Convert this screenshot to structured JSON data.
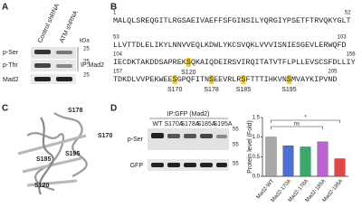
{
  "panel_a": {
    "label": "A",
    "lanes": [
      "Control shRNA",
      "ATM shRNA"
    ],
    "unit": "kDa",
    "markers": [
      25,
      25,
      25
    ],
    "rows": [
      "p-Ser",
      "p-Thr",
      "Mad2"
    ],
    "ip": "IP:Mad2"
  },
  "panel_b": {
    "label": "B",
    "lines": [
      {
        "start": 1,
        "end": 52,
        "seq": "MALQLSREQGITLRGSAEIVAEFFSFGINSILYQRGIYPSETFTRVQKYGLT"
      },
      {
        "start": 53,
        "end": 103,
        "seq": "LLVTTDLELIKYLNNVVEQLKDWLYKCSVQKLVVVISNIESGEVLERWQFD"
      },
      {
        "start": 104,
        "end": 156,
        "seq": "IECDKTAKDDSAPREKSQKAIQDEIRSVIRQITATVTFLPLLEVSCSFDLLIY"
      },
      {
        "start": 157,
        "end": 205,
        "seq": "TDKDLVVPEKWEESGPQFITNSEEVRLRSFTTTIHKVNSMVAYKIPVND"
      }
    ],
    "sites": [
      {
        "label": "S120",
        "color": "#4aa3df"
      },
      {
        "label": "S170",
        "color": "#1f4fbf"
      },
      {
        "label": "S178",
        "color": "#1a9a5a"
      },
      {
        "label": "S185",
        "color": "#a040c0"
      },
      {
        "label": "S195",
        "color": "#d02828"
      }
    ]
  },
  "panel_c": {
    "label": "C",
    "sites": [
      "S178",
      "S170",
      "S195",
      "S185",
      "S120"
    ]
  },
  "panel_d": {
    "label": "D",
    "ip": "IP:GFP (Mad2)",
    "lanes": [
      "WT",
      "S170A",
      "S178A",
      "S185A",
      "S195A"
    ],
    "rows": [
      "p-Ser",
      "GFP"
    ],
    "markers": [
      55,
      55,
      55
    ]
  },
  "chart_data": {
    "type": "bar",
    "y_label": "Protein level (Fold)",
    "categories": [
      "Mad2-WT",
      "Mad2-170A",
      "Mad2-178A",
      "Mad2-185A",
      "Mad2-195A"
    ],
    "values": [
      1.0,
      0.78,
      0.75,
      0.88,
      0.45
    ],
    "colors": [
      "#a8a8a8",
      "#4a6fd8",
      "#3aaa6a",
      "#c060d8",
      "#e04848"
    ],
    "ylim": [
      0,
      1.5
    ],
    "yticks": [
      {
        "value": 0,
        "label": "0.0"
      },
      {
        "value": 0.5,
        "label": "0.5"
      },
      {
        "value": 1,
        "label": "1.0"
      },
      {
        "value": 1.5,
        "label": "1.5"
      }
    ],
    "annotations": [
      "*",
      "ns"
    ]
  }
}
